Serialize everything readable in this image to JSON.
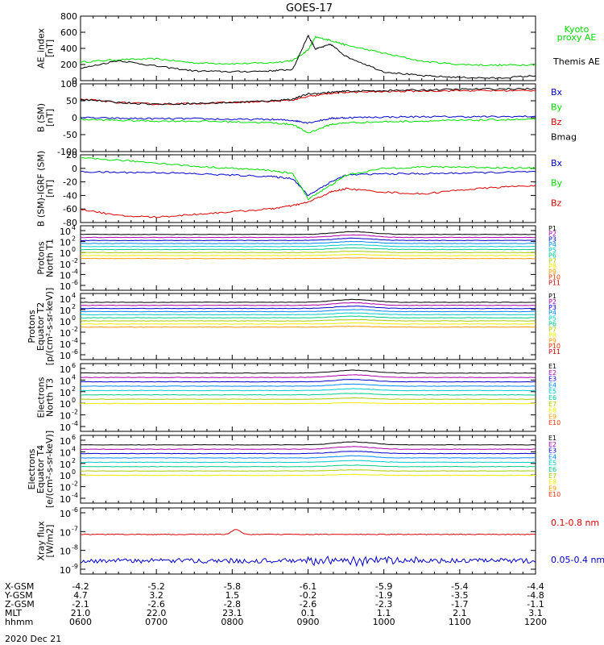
{
  "title": "GOES-17",
  "date": "2020 Dec 21",
  "colors": {
    "black": "#000000",
    "green": "#00dd00",
    "blue": "#0000cc",
    "red": "#dd0000",
    "P1": "#000000",
    "P2": "#aa00aa",
    "P3": "#0000cc",
    "P4": "#0088ff",
    "P5": "#00cccc",
    "P6": "#00cc88",
    "P7": "#aacc00",
    "P8": "#eeee00",
    "P9": "#ff9900",
    "P10": "#ff3300",
    "P11": "#cc0000"
  },
  "chart_data": [
    {
      "type": "line",
      "id": "ae",
      "ylabel": [
        "AE_index",
        "[nT]"
      ],
      "yticks": [
        "800",
        "600",
        "400",
        "200",
        "0"
      ],
      "ylim": [
        0,
        800
      ],
      "legend": [
        {
          "name": "Kyoto",
          "color": "#00dd00"
        },
        {
          "name": "proxy AE",
          "color": "#00dd00"
        },
        {
          "name": "Themis AE",
          "color": "#000000"
        }
      ],
      "x": [
        6.0,
        6.5,
        7.0,
        7.5,
        8.0,
        8.5,
        8.8,
        9.0,
        9.1,
        9.3,
        9.5,
        10.0,
        10.5,
        11.0,
        11.5,
        12.0
      ],
      "series": [
        {
          "color": "#00dd00",
          "values": [
            230,
            260,
            270,
            220,
            210,
            220,
            250,
            380,
            540,
            500,
            440,
            340,
            240,
            200,
            190,
            200
          ]
        },
        {
          "color": "#000000",
          "values": [
            150,
            250,
            180,
            120,
            110,
            120,
            140,
            560,
            390,
            450,
            300,
            110,
            60,
            40,
            30,
            60
          ]
        }
      ]
    },
    {
      "type": "line",
      "id": "bsm",
      "ylabel": [
        "B (SM)",
        "[nT]"
      ],
      "yticks": [
        "100",
        "50",
        "0",
        "-50",
        "-100"
      ],
      "ylim": [
        -100,
        100
      ],
      "legend": [
        {
          "name": "Bx",
          "color": "#0000cc"
        },
        {
          "name": "By",
          "color": "#00dd00"
        },
        {
          "name": "Bz",
          "color": "#dd0000"
        },
        {
          "name": "Bmag",
          "color": "#000000"
        }
      ],
      "x": [
        6.0,
        6.5,
        7.0,
        7.5,
        8.0,
        8.5,
        8.8,
        9.0,
        9.3,
        9.5,
        10.0,
        10.5,
        11.0,
        11.5,
        12.0
      ],
      "series": [
        {
          "color": "#0000cc",
          "values": [
            0,
            -2,
            -3,
            -3,
            -5,
            -5,
            -8,
            -15,
            -2,
            0,
            2,
            3,
            3,
            3,
            4
          ]
        },
        {
          "color": "#00dd00",
          "values": [
            -5,
            -8,
            -10,
            -10,
            -12,
            -15,
            -20,
            -45,
            -20,
            -15,
            -12,
            -10,
            -8,
            -6,
            -5
          ]
        },
        {
          "color": "#dd0000",
          "values": [
            55,
            45,
            40,
            42,
            45,
            48,
            52,
            62,
            72,
            75,
            77,
            79,
            80,
            80,
            80
          ]
        },
        {
          "color": "#000000",
          "values": [
            55,
            45,
            40,
            42,
            45,
            50,
            55,
            70,
            75,
            78,
            80,
            82,
            84,
            85,
            85
          ]
        }
      ]
    },
    {
      "type": "line",
      "id": "bsm_igrf",
      "ylabel": [
        "B (SM)-IGRF (SM)",
        "[nT]"
      ],
      "yticks": [
        "20",
        "0",
        "-20",
        "-40",
        "-60",
        "-80"
      ],
      "ylim": [
        -80,
        20
      ],
      "legend": [
        {
          "name": "Bx",
          "color": "#0000cc"
        },
        {
          "name": "By",
          "color": "#00dd00"
        },
        {
          "name": "Bz",
          "color": "#dd0000"
        }
      ],
      "x": [
        6.0,
        6.5,
        7.0,
        7.5,
        8.0,
        8.5,
        8.8,
        9.0,
        9.3,
        9.5,
        10.0,
        10.5,
        11.0,
        11.5,
        12.0
      ],
      "series": [
        {
          "color": "#0000cc",
          "values": [
            -5,
            -6,
            -6,
            -8,
            -10,
            -12,
            -15,
            -40,
            -20,
            -10,
            -8,
            -8,
            -7,
            -6,
            -5
          ]
        },
        {
          "color": "#00dd00",
          "values": [
            15,
            12,
            8,
            3,
            0,
            -3,
            -8,
            -45,
            -25,
            -10,
            0,
            2,
            2,
            1,
            0
          ]
        },
        {
          "color": "#dd0000",
          "values": [
            -60,
            -70,
            -72,
            -68,
            -64,
            -60,
            -55,
            -50,
            -35,
            -30,
            -35,
            -38,
            -32,
            -28,
            -25
          ]
        }
      ]
    },
    {
      "type": "line",
      "id": "p_north",
      "ylabel": [
        "Protons",
        "North T1"
      ],
      "ytick_base": "10",
      "ytick_exp": [
        "4",
        "2",
        "0",
        "-2",
        "-4",
        "-6"
      ],
      "legend": [
        "P1",
        "P2",
        "P3",
        "P4",
        "P5",
        "P6",
        "P7",
        "P8",
        "P9",
        "P10",
        "P11"
      ]
    },
    {
      "type": "line",
      "id": "p_equator",
      "ylabel": [
        "Protons",
        "Equator T2",
        "[p/(cm²-s-sr-keV)]"
      ],
      "ytick_base": "10",
      "ytick_exp": [
        "4",
        "2",
        "0",
        "-2",
        "-4",
        "-6"
      ],
      "legend": [
        "P1",
        "P2",
        "P3",
        "P4",
        "P5",
        "P6",
        "P7",
        "P8",
        "P9",
        "P10",
        "P11"
      ]
    },
    {
      "type": "line",
      "id": "e_north",
      "ylabel": [
        "Electrons",
        "North T3"
      ],
      "ytick_base": "10",
      "ytick_exp": [
        "6",
        "4",
        "2",
        "0",
        "-2",
        "-4"
      ],
      "legend": [
        "E1",
        "E2",
        "E3",
        "E4",
        "E5",
        "E6",
        "E7",
        "E8",
        "E9",
        "E10"
      ]
    },
    {
      "type": "line",
      "id": "e_equator",
      "ylabel": [
        "Electrons",
        "Equator T4",
        "[e/(cm²-s-sr-keV)]"
      ],
      "ytick_base": "10",
      "ytick_exp": [
        "6",
        "4",
        "2",
        "0",
        "-2",
        "-4"
      ],
      "legend": [
        "E1",
        "E2",
        "E3",
        "E4",
        "E5",
        "E6",
        "E7",
        "E8",
        "E9",
        "E10"
      ]
    },
    {
      "type": "line",
      "id": "xray",
      "ylabel": [
        "Xray flux",
        "[W/m2]"
      ],
      "ytick_base": "10",
      "ytick_exp": [
        "-6",
        "-7",
        "-8",
        "-9"
      ],
      "legend": [
        {
          "name": "0.1-0.8 nm",
          "color": "#dd0000"
        },
        {
          "name": "0.05-0.4 nm",
          "color": "#0000cc"
        }
      ]
    }
  ],
  "xaxis": {
    "row_labels": [
      "X-GSM",
      "Y-GSM",
      "Z-GSM",
      "MLT",
      "hhmm"
    ],
    "columns": [
      {
        "xgsm": "-4.2",
        "ygsm": "4.7",
        "zgsm": "-2.1",
        "mlt": "21.0",
        "hhmm": "0600"
      },
      {
        "xgsm": "-5.2",
        "ygsm": "3.2",
        "zgsm": "-2.6",
        "mlt": "22.0",
        "hhmm": "0700"
      },
      {
        "xgsm": "-5.8",
        "ygsm": "1.5",
        "zgsm": "-2.8",
        "mlt": "23.1",
        "hhmm": "0800"
      },
      {
        "xgsm": "-6.1",
        "ygsm": "-0.2",
        "zgsm": "-2.6",
        "mlt": "0.1",
        "hhmm": "0900"
      },
      {
        "xgsm": "-5.9",
        "ygsm": "-1.9",
        "zgsm": "-2.3",
        "mlt": "1.1",
        "hhmm": "1000"
      },
      {
        "xgsm": "-5.4",
        "ygsm": "-3.5",
        "zgsm": "-1.7",
        "mlt": "2.1",
        "hhmm": "1100"
      },
      {
        "xgsm": "-4.4",
        "ygsm": "-4.8",
        "zgsm": "-1.1",
        "mlt": "3.1",
        "hhmm": "1200"
      }
    ]
  }
}
